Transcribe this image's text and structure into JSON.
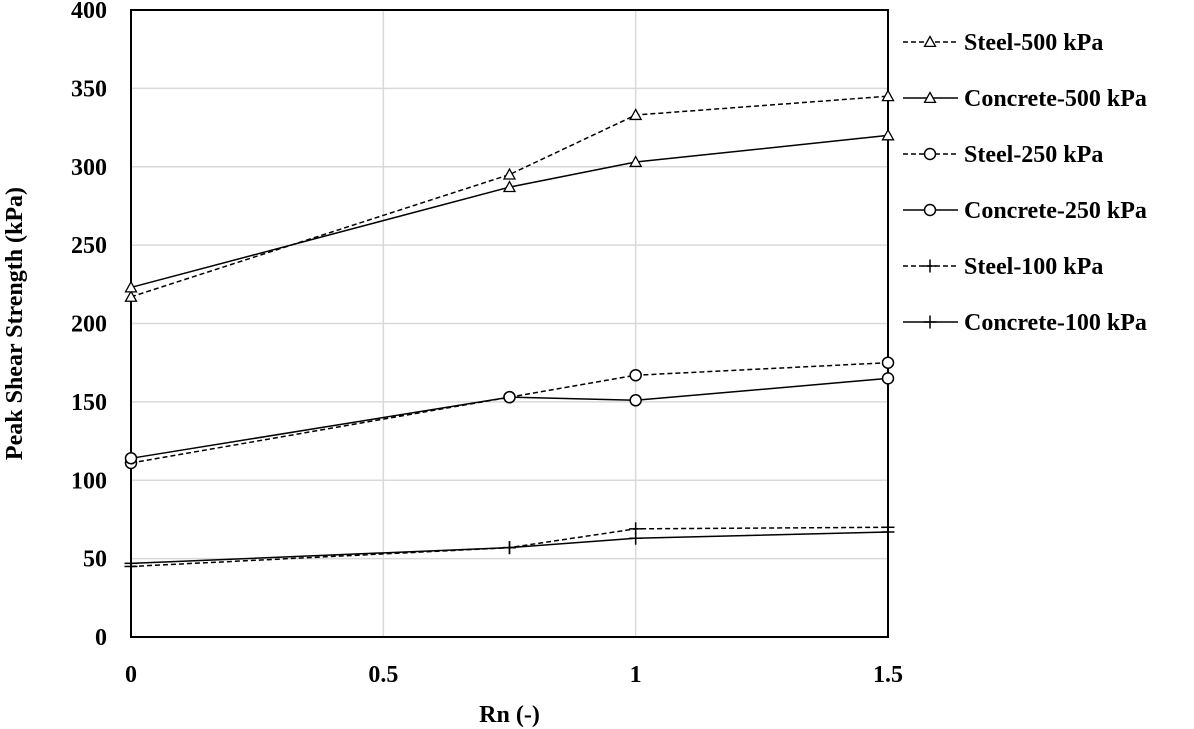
{
  "chart_data": {
    "type": "line",
    "xlabel": "Rn (-)",
    "ylabel": "Peak Shear Strength (kPa)",
    "xlim": [
      0,
      1.5
    ],
    "ylim": [
      0,
      400
    ],
    "x_ticks": [
      0,
      0.5,
      1,
      1.5
    ],
    "x_tick_labels": [
      "0",
      "0.5",
      "1",
      "1.5"
    ],
    "y_ticks": [
      0,
      50,
      100,
      150,
      200,
      250,
      300,
      350,
      400
    ],
    "y_tick_labels": [
      "0",
      "50",
      "100",
      "150",
      "200",
      "250",
      "300",
      "350",
      "400"
    ],
    "grid": true,
    "legend_position": "right",
    "x": [
      0,
      0.75,
      1,
      1.5
    ],
    "series": [
      {
        "name": "Steel-500 kPa",
        "values": [
          217,
          295,
          333,
          345
        ],
        "marker": "triangle",
        "dash": "dashed"
      },
      {
        "name": "Concrete-500 kPa",
        "values": [
          223,
          287,
          303,
          320
        ],
        "marker": "triangle",
        "dash": "solid"
      },
      {
        "name": "Steel-250 kPa",
        "values": [
          111,
          153,
          167,
          175
        ],
        "marker": "circle",
        "dash": "dashed"
      },
      {
        "name": "Concrete-250 kPa",
        "values": [
          114,
          153,
          151,
          165
        ],
        "marker": "circle",
        "dash": "solid"
      },
      {
        "name": "Steel-100 kPa",
        "values": [
          45,
          57,
          69,
          70
        ],
        "marker": "plus",
        "dash": "dashed"
      },
      {
        "name": "Concrete-100 kPa",
        "values": [
          47,
          57,
          63,
          67
        ],
        "marker": "plus",
        "dash": "solid"
      }
    ],
    "colors": {
      "line": "#000000",
      "grid": "#d9d9d9",
      "background": "#ffffff"
    }
  }
}
